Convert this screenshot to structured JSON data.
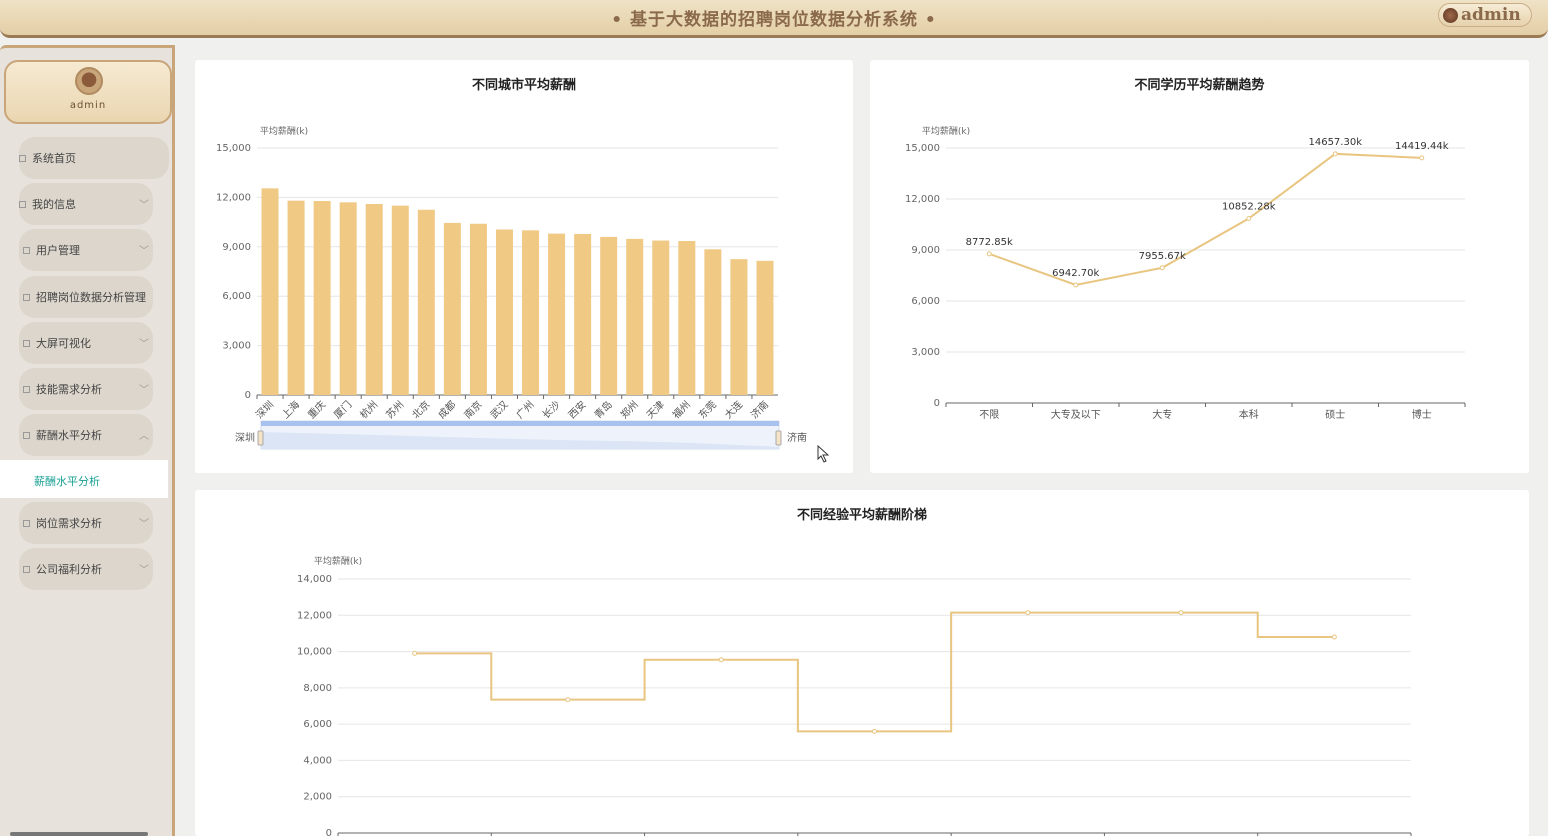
{
  "header": {
    "title": "• 基于大数据的招聘岗位数据分析系统 •",
    "user": "admin"
  },
  "sidebar": {
    "profile_name": "admin",
    "items": [
      {
        "label": "系统首页",
        "has_children": false
      },
      {
        "label": "我的信息",
        "has_children": true
      },
      {
        "label": "用户管理",
        "has_children": true
      },
      {
        "label": "招聘岗位数据分析管理",
        "has_children": false
      },
      {
        "label": "大屏可视化",
        "has_children": true
      },
      {
        "label": "技能需求分析",
        "has_children": true
      },
      {
        "label": "薪酬水平分析",
        "has_children": true,
        "expanded": true
      },
      {
        "label": "岗位需求分析",
        "has_children": true
      },
      {
        "label": "公司福利分析",
        "has_children": true
      }
    ],
    "active_sub": "薪酬水平分析"
  },
  "colors": {
    "accent": "#f0c985",
    "line": "#e8c580",
    "menu_active": "#1aa094"
  },
  "chart_data": [
    {
      "type": "bar",
      "title": "不同城市平均薪酬",
      "ylabel": "平均薪酬(k)",
      "ylim": [
        0,
        15000
      ],
      "yticks": [
        "0",
        "3,000",
        "6,000",
        "9,000",
        "12,000",
        "15,000"
      ],
      "categories": [
        "深圳",
        "上海",
        "重庆",
        "厦门",
        "杭州",
        "苏州",
        "北京",
        "成都",
        "南京",
        "武汉",
        "广州",
        "长沙",
        "西安",
        "青岛",
        "郑州",
        "天津",
        "福州",
        "东莞",
        "大连",
        "济南"
      ],
      "values": [
        12550,
        11800,
        11780,
        11700,
        11600,
        11500,
        11250,
        10450,
        10400,
        10050,
        10000,
        9800,
        9780,
        9600,
        9480,
        9380,
        9350,
        8850,
        8250,
        8150
      ],
      "zoom": {
        "start_label": "深圳",
        "end_label": "济南"
      }
    },
    {
      "type": "line",
      "title": "不同学历平均薪酬趋势",
      "ylabel": "平均薪酬(k)",
      "ylim": [
        0,
        15000
      ],
      "yticks": [
        "0",
        "3,000",
        "6,000",
        "9,000",
        "12,000",
        "15,000"
      ],
      "categories": [
        "不限",
        "大专及以下",
        "大专",
        "本科",
        "硕士",
        "博士"
      ],
      "values": [
        8772.85,
        6942.7,
        7955.67,
        10852.28,
        14657.3,
        14419.44
      ],
      "labels": [
        "8772.85k",
        "6942.70k",
        "7955.67k",
        "10852.28k",
        "14657.30k",
        "14419.44k"
      ]
    },
    {
      "type": "line",
      "title": "不同经验平均薪酬阶梯",
      "ylabel": "平均薪酬(k)",
      "ylim": [
        0,
        14000
      ],
      "yticks": [
        "0",
        "2,000",
        "4,000",
        "6,000",
        "8,000",
        "10,000",
        "12,000",
        "14,000"
      ],
      "values": [
        9900,
        7350,
        9550,
        5600,
        12150,
        12150,
        10800
      ]
    }
  ]
}
